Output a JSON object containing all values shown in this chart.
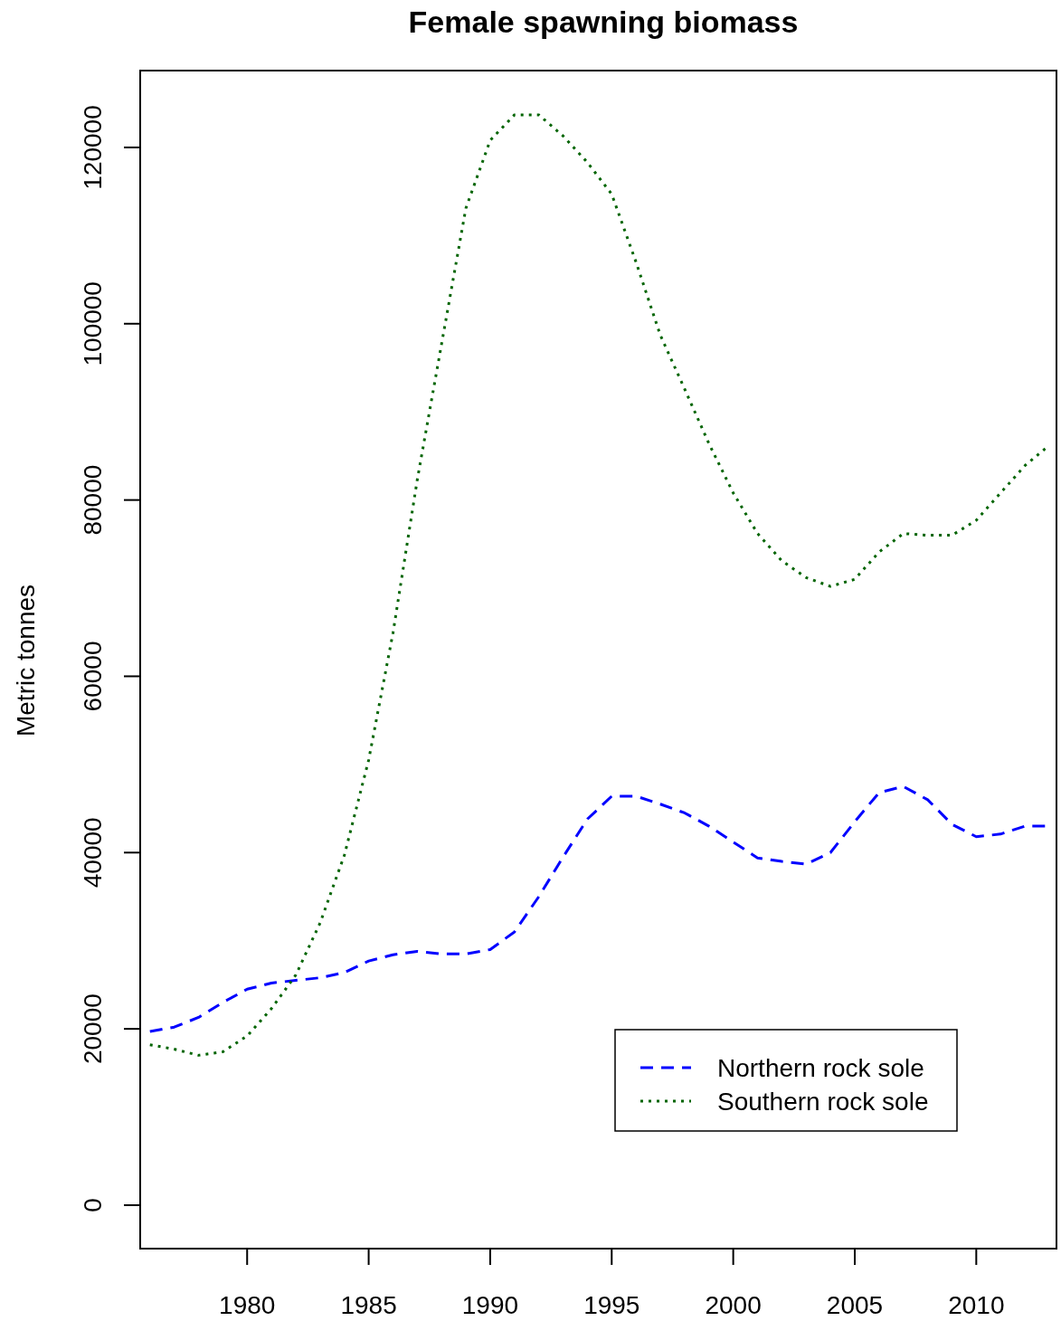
{
  "chart_data": {
    "type": "line",
    "title": "Female spawning biomass",
    "ylabel": "Metric tonnes",
    "x": [
      1976,
      1977,
      1978,
      1979,
      1980,
      1981,
      1982,
      1983,
      1984,
      1985,
      1986,
      1987,
      1988,
      1989,
      1990,
      1991,
      1992,
      1993,
      1994,
      1995,
      1996,
      1997,
      1998,
      1999,
      2000,
      2001,
      2002,
      2003,
      2004,
      2005,
      2006,
      2007,
      2008,
      2009,
      2010,
      2011,
      2012,
      2013
    ],
    "series": [
      {
        "name": "Northern rock sole",
        "color": "#0000ff",
        "line_style": "dashed",
        "values": [
          19700,
          20200,
          21300,
          23000,
          24500,
          25200,
          25500,
          25800,
          26400,
          27700,
          28400,
          28800,
          28500,
          28500,
          29000,
          31000,
          35000,
          39500,
          43800,
          46400,
          46400,
          45500,
          44500,
          43000,
          41200,
          39400,
          39000,
          38700,
          40000,
          43500,
          46800,
          47500,
          46000,
          43200,
          41800,
          42100,
          43000,
          43000
        ]
      },
      {
        "name": "Southern rock sole",
        "color": "#006400",
        "line_style": "dotted",
        "values": [
          18200,
          17700,
          17000,
          17400,
          19200,
          22300,
          26100,
          32000,
          39700,
          50500,
          64900,
          82300,
          97700,
          113100,
          120800,
          123700,
          123700,
          121300,
          118300,
          114700,
          107000,
          98700,
          92600,
          86400,
          80800,
          76200,
          73100,
          71200,
          70200,
          71000,
          74100,
          76200,
          76000,
          76000,
          77700,
          80800,
          83900,
          86200
        ]
      }
    ],
    "xlim": [
      1975.6,
      2013.3
    ],
    "xticks": [
      1980,
      1985,
      1990,
      1995,
      2000,
      2005,
      2010
    ],
    "ylim": [
      -4930,
      128720
    ],
    "yticks": [
      0,
      20000,
      40000,
      60000,
      80000,
      100000,
      120000
    ],
    "legend": "bottom right"
  }
}
